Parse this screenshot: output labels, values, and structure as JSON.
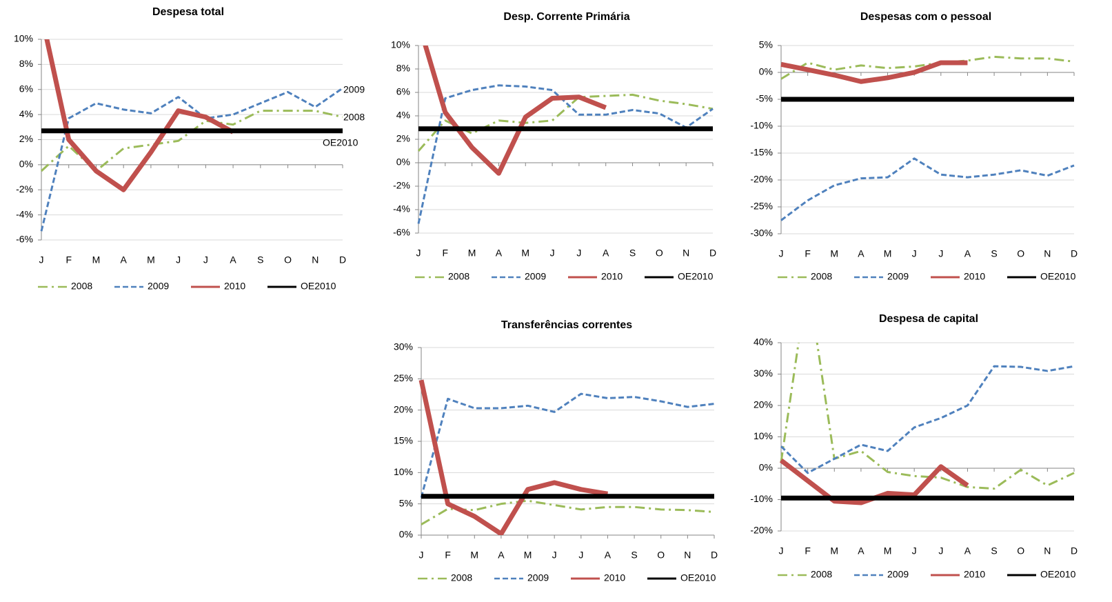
{
  "chart_data": [
    {
      "type": "line",
      "title": "Despesa total",
      "categories": [
        "J",
        "F",
        "M",
        "A",
        "M",
        "J",
        "J",
        "A",
        "S",
        "O",
        "N",
        "D"
      ],
      "ylim": [
        -6,
        10
      ],
      "yticks": [
        {
          "value": -6,
          "label": "-6%"
        },
        {
          "value": -4,
          "label": "-4%"
        },
        {
          "value": -2,
          "label": "-2%"
        },
        {
          "value": 0,
          "label": "0%"
        },
        {
          "value": 2,
          "label": "2%"
        },
        {
          "value": 4,
          "label": "4%"
        },
        {
          "value": 6,
          "label": "6%"
        },
        {
          "value": 8,
          "label": "8%"
        },
        {
          "value": 10,
          "label": "10%"
        }
      ],
      "grid": true,
      "series": [
        {
          "name": "2008",
          "color": "#9bbb59",
          "style": "dashdot",
          "values": [
            -0.5,
            1.5,
            -0.5,
            1.3,
            1.6,
            1.9,
            3.5,
            3.2,
            4.3,
            4.3,
            4.3,
            3.8
          ]
        },
        {
          "name": "2009",
          "color": "#4f81bd",
          "style": "dashed",
          "values": [
            -5.3,
            3.7,
            4.9,
            4.4,
            4.1,
            5.4,
            3.7,
            4.0,
            4.9,
            5.8,
            4.6,
            6.1
          ]
        },
        {
          "name": "2010",
          "color": "#c0504d",
          "style": "thick",
          "values": [
            12,
            2.0,
            -0.5,
            -2.0,
            1.0,
            4.3,
            3.8,
            2.6,
            null,
            null,
            null,
            null
          ]
        },
        {
          "name": "OE2010",
          "color": "#000000",
          "style": "thick",
          "values": [
            2.7,
            2.7,
            2.7,
            2.7,
            2.7,
            2.7,
            2.7,
            2.7,
            2.7,
            2.7,
            2.7,
            2.7
          ]
        }
      ],
      "annotations": [
        {
          "text": "2009",
          "color": "#000000"
        },
        {
          "text": "2008",
          "color": "#9bbb59"
        },
        {
          "text": "OE2010",
          "color": "#000000"
        }
      ]
    },
    {
      "type": "line",
      "title": "Desp. Corrente Primária",
      "categories": [
        "J",
        "F",
        "M",
        "A",
        "M",
        "J",
        "J",
        "A",
        "S",
        "O",
        "N",
        "D"
      ],
      "ylim": [
        -6,
        10
      ],
      "yticks": [
        {
          "value": -6,
          "label": "-6%"
        },
        {
          "value": -4,
          "label": "-4%"
        },
        {
          "value": -2,
          "label": "-2%"
        },
        {
          "value": 0,
          "label": "0%"
        },
        {
          "value": 2,
          "label": "2%"
        },
        {
          "value": 4,
          "label": "4%"
        },
        {
          "value": 6,
          "label": "6%"
        },
        {
          "value": 8,
          "label": "8%"
        },
        {
          "value": 10,
          "label": "10%"
        }
      ],
      "grid": true,
      "series": [
        {
          "name": "2008",
          "color": "#9bbb59",
          "style": "dashdot",
          "values": [
            1.0,
            3.6,
            2.5,
            3.6,
            3.4,
            3.6,
            5.6,
            5.7,
            5.8,
            5.3,
            5.0,
            4.6
          ]
        },
        {
          "name": "2009",
          "color": "#4f81bd",
          "style": "dashed",
          "values": [
            -5.2,
            5.5,
            6.2,
            6.6,
            6.5,
            6.2,
            4.1,
            4.1,
            4.5,
            4.2,
            3.0,
            4.6
          ]
        },
        {
          "name": "2010",
          "color": "#c0504d",
          "style": "thick",
          "values": [
            12,
            4.3,
            1.3,
            -0.9,
            3.9,
            5.5,
            5.6,
            4.7,
            null,
            null,
            null,
            null
          ]
        },
        {
          "name": "OE2010",
          "color": "#000000",
          "style": "thick",
          "values": [
            2.9,
            2.9,
            2.9,
            2.9,
            2.9,
            2.9,
            2.9,
            2.9,
            2.9,
            2.9,
            2.9,
            2.9
          ]
        }
      ]
    },
    {
      "type": "line",
      "title": "Despesas com o pessoal",
      "categories": [
        "J",
        "F",
        "M",
        "A",
        "M",
        "J",
        "J",
        "A",
        "S",
        "O",
        "N",
        "D"
      ],
      "ylim": [
        -30,
        5
      ],
      "yticks": [
        {
          "value": -30,
          "label": "-30%"
        },
        {
          "value": -25,
          "label": "-25%"
        },
        {
          "value": -20,
          "label": "-20%"
        },
        {
          "value": -15,
          "label": "-15%"
        },
        {
          "value": -10,
          "label": "-10%"
        },
        {
          "value": -5,
          "label": "-5%"
        },
        {
          "value": 0,
          "label": "0%"
        },
        {
          "value": 5,
          "label": "5%"
        }
      ],
      "grid": true,
      "series": [
        {
          "name": "2008",
          "color": "#9bbb59",
          "style": "dashdot",
          "values": [
            -1.2,
            1.8,
            0.5,
            1.3,
            0.8,
            1.1,
            1.8,
            2.2,
            2.9,
            2.6,
            2.6,
            2.0
          ]
        },
        {
          "name": "2009",
          "color": "#4f81bd",
          "style": "dashed",
          "values": [
            -27.5,
            -23.8,
            -21.0,
            -19.7,
            -19.5,
            -16.0,
            -19.0,
            -19.5,
            -19.0,
            -18.2,
            -19.2,
            -17.3
          ]
        },
        {
          "name": "2010",
          "color": "#c0504d",
          "style": "thick",
          "values": [
            1.5,
            0.5,
            -0.5,
            -1.7,
            -1.0,
            0.0,
            1.8,
            1.8,
            null,
            null,
            null,
            null
          ]
        },
        {
          "name": "OE2010",
          "color": "#000000",
          "style": "thick",
          "values": [
            -5,
            -5,
            -5,
            -5,
            -5,
            -5,
            -5,
            -5,
            -5,
            -5,
            -5,
            -5
          ]
        }
      ]
    },
    {
      "type": "line",
      "title": "Transferências correntes",
      "categories": [
        "J",
        "F",
        "M",
        "A",
        "M",
        "J",
        "J",
        "A",
        "S",
        "O",
        "N",
        "D"
      ],
      "ylim": [
        0,
        30
      ],
      "yticks": [
        {
          "value": 0,
          "label": "0%"
        },
        {
          "value": 5,
          "label": "5%"
        },
        {
          "value": 10,
          "label": "10%"
        },
        {
          "value": 15,
          "label": "15%"
        },
        {
          "value": 20,
          "label": "20%"
        },
        {
          "value": 25,
          "label": "25%"
        },
        {
          "value": 30,
          "label": "30%"
        }
      ],
      "grid": true,
      "series": [
        {
          "name": "2008",
          "color": "#9bbb59",
          "style": "dashdot",
          "values": [
            1.7,
            4.2,
            4.0,
            5.0,
            5.5,
            4.8,
            4.1,
            4.5,
            4.5,
            4.1,
            4.0,
            3.7
          ]
        },
        {
          "name": "2009",
          "color": "#4f81bd",
          "style": "dashed",
          "values": [
            6.0,
            21.8,
            20.3,
            20.3,
            20.7,
            19.7,
            22.6,
            21.9,
            22.1,
            21.4,
            20.5,
            21.0
          ]
        },
        {
          "name": "2010",
          "color": "#c0504d",
          "style": "thick",
          "values": [
            24.8,
            5.0,
            3.0,
            0.2,
            7.3,
            8.4,
            7.3,
            6.6,
            null,
            null,
            null,
            null
          ]
        },
        {
          "name": "OE2010",
          "color": "#000000",
          "style": "thick",
          "values": [
            6.2,
            6.2,
            6.2,
            6.2,
            6.2,
            6.2,
            6.2,
            6.2,
            6.2,
            6.2,
            6.2,
            6.2
          ]
        }
      ]
    },
    {
      "type": "line",
      "title": "Despesa de capital",
      "categories": [
        "J",
        "F",
        "M",
        "A",
        "M",
        "J",
        "J",
        "A",
        "S",
        "O",
        "N",
        "D"
      ],
      "ylim": [
        -20,
        40
      ],
      "yticks": [
        {
          "value": -20,
          "label": "-20%"
        },
        {
          "value": -10,
          "label": "-10%"
        },
        {
          "value": 0,
          "label": "0%"
        },
        {
          "value": 10,
          "label": "10%"
        },
        {
          "value": 20,
          "label": "20%"
        },
        {
          "value": 30,
          "label": "30%"
        },
        {
          "value": 40,
          "label": "40%"
        }
      ],
      "grid": true,
      "series": [
        {
          "name": "2008",
          "color": "#9bbb59",
          "style": "dashdot",
          "values": [
            2,
            60,
            3,
            5.5,
            -1.2,
            -2.5,
            -3.0,
            -6.0,
            -6.5,
            -0.5,
            -5.5,
            -1.5
          ]
        },
        {
          "name": "2009",
          "color": "#4f81bd",
          "style": "dashed",
          "values": [
            7,
            -1.5,
            3,
            7.5,
            5.5,
            13,
            16,
            20,
            32.5,
            32.3,
            31,
            32.5
          ]
        },
        {
          "name": "2010",
          "color": "#c0504d",
          "style": "thick",
          "values": [
            2.5,
            -4,
            -10.5,
            -11,
            -8,
            -8.5,
            0.5,
            -5.5,
            null,
            null,
            null,
            null
          ]
        },
        {
          "name": "OE2010",
          "color": "#000000",
          "style": "thick",
          "values": [
            -9.5,
            -9.5,
            -9.5,
            -9.5,
            -9.5,
            -9.5,
            -9.5,
            -9.5,
            -9.5,
            -9.5,
            -9.5,
            -9.5
          ]
        }
      ]
    }
  ]
}
